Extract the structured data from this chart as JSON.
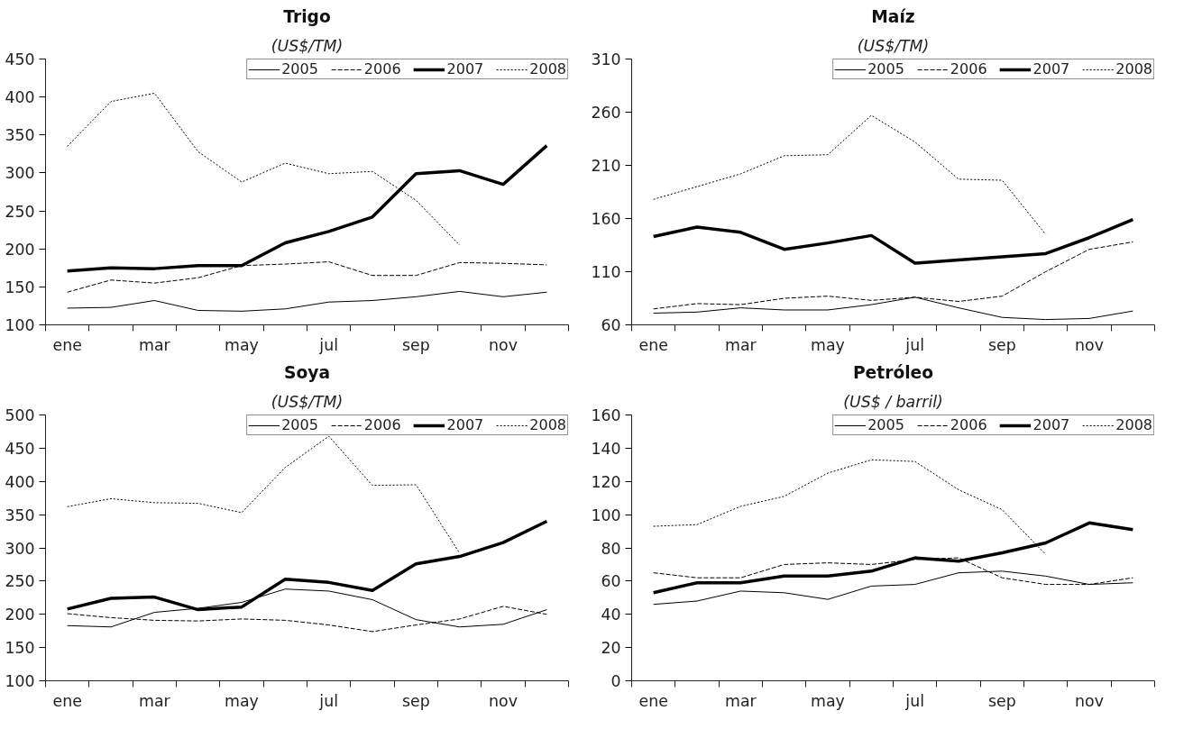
{
  "chart_data": [
    {
      "type": "line",
      "title": "Trigo",
      "subtitle": "(US$/TM)",
      "categories": [
        "ene",
        null,
        "mar",
        null,
        "may",
        null,
        "jul",
        null,
        "sep",
        null,
        "nov",
        null
      ],
      "ylim": [
        100,
        450
      ],
      "yticks": [
        100,
        150,
        200,
        250,
        300,
        350,
        400,
        450
      ],
      "grid": false,
      "legend": "top right",
      "marker": "none",
      "series": [
        {
          "name": "2005",
          "color": "#000000",
          "line_style": "solid",
          "values": [
            122,
            123,
            132,
            119,
            118,
            121,
            130,
            132,
            137,
            144,
            137,
            143
          ]
        },
        {
          "name": "2006",
          "color": "#000000",
          "line_style": "dashed",
          "values": [
            143,
            159,
            155,
            162,
            178,
            180,
            183,
            165,
            165,
            182,
            181,
            179
          ]
        },
        {
          "name": "2007",
          "color": "#000000",
          "line_style": "solid",
          "values": [
            171,
            175,
            174,
            178,
            178,
            208,
            223,
            242,
            299,
            303,
            285,
            336
          ]
        },
        {
          "name": "2008",
          "color": "#000000",
          "line_style": "dotted",
          "values": [
            335,
            394,
            405,
            328,
            288,
            313,
            299,
            302,
            264,
            205,
            null,
            null
          ]
        }
      ]
    },
    {
      "type": "line",
      "title": "Maíz",
      "subtitle": "(US$/TM)",
      "categories": [
        "ene",
        null,
        "mar",
        null,
        "may",
        null,
        "jul",
        null,
        "sep",
        null,
        "nov",
        null
      ],
      "ylim": [
        60,
        310
      ],
      "yticks": [
        60,
        110,
        160,
        210,
        260,
        310
      ],
      "grid": false,
      "legend": "top right",
      "marker": "none",
      "series": [
        {
          "name": "2005",
          "color": "#000000",
          "line_style": "solid",
          "values": [
            71,
            72,
            76,
            74,
            74,
            79,
            86,
            76,
            67,
            65,
            66,
            73
          ]
        },
        {
          "name": "2006",
          "color": "#000000",
          "line_style": "dashed",
          "values": [
            75,
            80,
            79,
            85,
            87,
            83,
            86,
            82,
            87,
            110,
            131,
            138
          ]
        },
        {
          "name": "2007",
          "color": "#000000",
          "line_style": "solid",
          "values": [
            143,
            152,
            147,
            131,
            137,
            144,
            118,
            121,
            124,
            127,
            142,
            159
          ]
        },
        {
          "name": "2008",
          "color": "#000000",
          "line_style": "dotted",
          "values": [
            178,
            190,
            202,
            219,
            220,
            257,
            232,
            197,
            196,
            145,
            null,
            null
          ]
        }
      ]
    },
    {
      "type": "line",
      "title": "Soya",
      "subtitle": "(US$/TM)",
      "categories": [
        "ene",
        null,
        "mar",
        null,
        "may",
        null,
        "jul",
        null,
        "sep",
        null,
        "nov",
        null
      ],
      "ylim": [
        100,
        500
      ],
      "yticks": [
        100,
        150,
        200,
        250,
        300,
        350,
        400,
        450,
        500
      ],
      "grid": false,
      "legend": "top right",
      "marker": "none",
      "series": [
        {
          "name": "2005",
          "color": "#000000",
          "line_style": "solid",
          "values": [
            183,
            181,
            203,
            209,
            218,
            238,
            235,
            222,
            192,
            181,
            185,
            207
          ]
        },
        {
          "name": "2006",
          "color": "#000000",
          "line_style": "dashed",
          "values": [
            201,
            195,
            191,
            190,
            193,
            191,
            184,
            174,
            184,
            193,
            212,
            200
          ]
        },
        {
          "name": "2007",
          "color": "#000000",
          "line_style": "solid",
          "values": [
            208,
            224,
            226,
            207,
            211,
            253,
            248,
            236,
            276,
            287,
            308,
            340
          ]
        },
        {
          "name": "2008",
          "color": "#000000",
          "line_style": "dotted",
          "values": [
            362,
            374,
            368,
            367,
            353,
            421,
            468,
            394,
            395,
            292,
            null,
            null
          ]
        }
      ]
    },
    {
      "type": "line",
      "title": "Petróleo",
      "subtitle": "(US$ / barril)",
      "categories": [
        "ene",
        null,
        "mar",
        null,
        "may",
        null,
        "jul",
        null,
        "sep",
        null,
        "nov",
        null
      ],
      "ylim": [
        0,
        160
      ],
      "yticks": [
        0,
        20,
        40,
        60,
        80,
        100,
        120,
        140,
        160
      ],
      "grid": false,
      "legend": "top right",
      "marker": "none",
      "series": [
        {
          "name": "2005",
          "color": "#000000",
          "line_style": "solid",
          "values": [
            46,
            48,
            54,
            53,
            49,
            57,
            58,
            65,
            66,
            63,
            58,
            59
          ]
        },
        {
          "name": "2006",
          "color": "#000000",
          "line_style": "dashed",
          "values": [
            65,
            62,
            62,
            70,
            71,
            70,
            73,
            74,
            62,
            58,
            58,
            62
          ]
        },
        {
          "name": "2007",
          "color": "#000000",
          "line_style": "solid",
          "values": [
            53,
            59,
            59,
            63,
            63,
            66,
            74,
            72,
            77,
            83,
            95,
            91
          ]
        },
        {
          "name": "2008",
          "color": "#000000",
          "line_style": "dotted",
          "values": [
            93,
            94,
            105,
            111,
            125,
            133,
            132,
            115,
            103,
            76,
            null,
            null
          ]
        }
      ]
    }
  ]
}
